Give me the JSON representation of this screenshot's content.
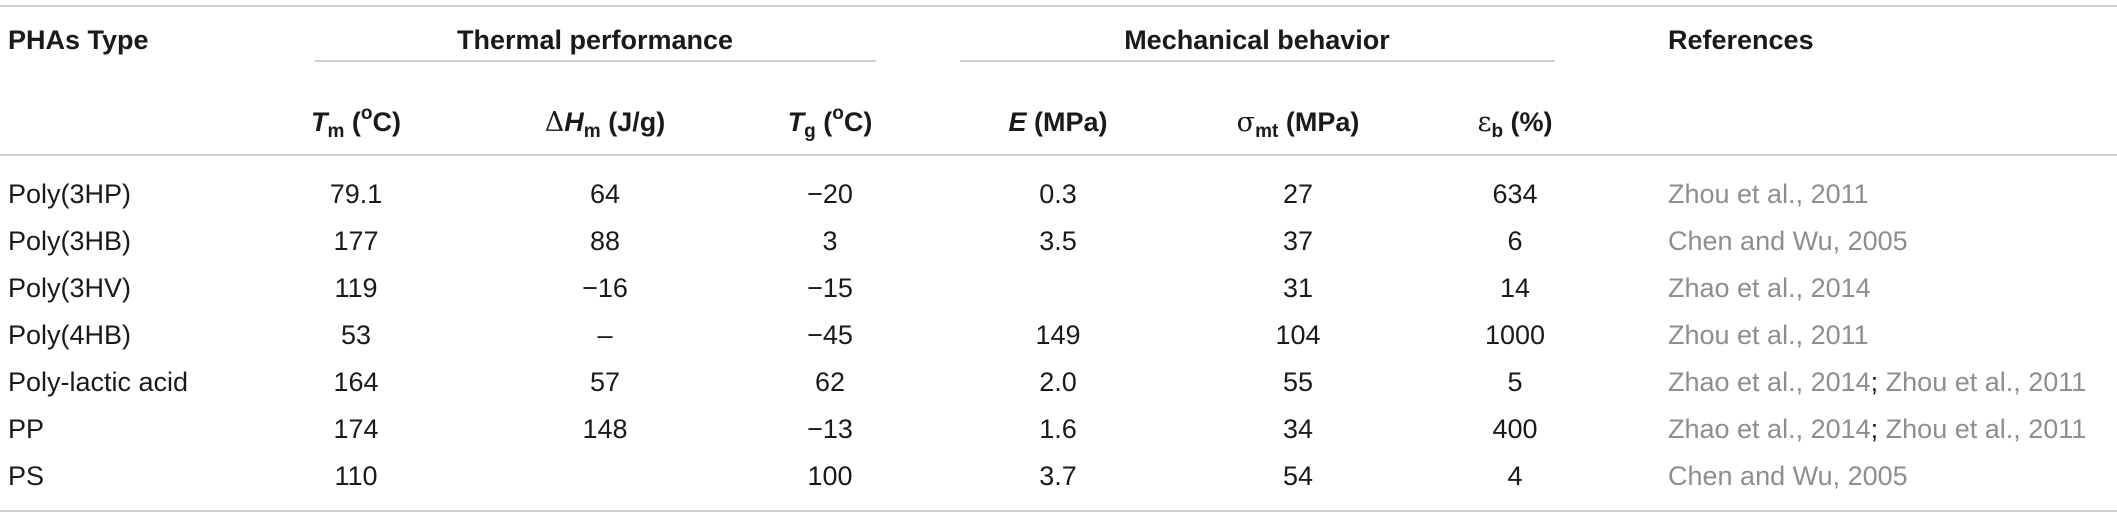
{
  "header": {
    "group1": "PHAs Type",
    "group2": "Thermal performance",
    "group3": "Mechanical behavior",
    "group4": "References",
    "cols": {
      "tm": {
        "sym": "T",
        "sub": "m",
        "unit_pre": " (",
        "sup": "o",
        "unit_post": "C)"
      },
      "dhm": {
        "pre": "Δ",
        "sym": "H",
        "sub": "m",
        "unit": " (J/g)"
      },
      "tg": {
        "sym": "T",
        "sub": "g",
        "unit_pre": " (",
        "sup": "o",
        "unit_post": "C)"
      },
      "e": {
        "sym": "E",
        "unit": " (MPa)"
      },
      "smt": {
        "sym": "σ",
        "sub": "mt",
        "unit": " (MPa)"
      },
      "eb": {
        "sym": "ε",
        "sub": "b",
        "unit": " (%)"
      }
    }
  },
  "rows": [
    {
      "type": "Poly(3HP)",
      "tm": "79.1",
      "dhm": "64",
      "tg": "−20",
      "e": "0.3",
      "smt": "27",
      "eb": "634",
      "ref1": "Zhou et al., 2011",
      "ref2": ""
    },
    {
      "type": "Poly(3HB)",
      "tm": "177",
      "dhm": "88",
      "tg": "3",
      "e": "3.5",
      "smt": "37",
      "eb": "6",
      "ref1": "Chen and Wu, 2005",
      "ref2": ""
    },
    {
      "type": "Poly(3HV)",
      "tm": "119",
      "dhm": "−16",
      "tg": "−15",
      "e": "",
      "smt": "31",
      "eb": "14",
      "ref1": "Zhao et al., 2014",
      "ref2": ""
    },
    {
      "type": "Poly(4HB)",
      "tm": "53",
      "dhm": "–",
      "tg": "−45",
      "e": "149",
      "smt": "104",
      "eb": "1000",
      "ref1": "Zhou et al., 2011",
      "ref2": ""
    },
    {
      "type": "Poly-lactic acid",
      "tm": "164",
      "dhm": "57",
      "tg": "62",
      "e": "2.0",
      "smt": "55",
      "eb": "5",
      "ref1": "Zhao et al., 2014",
      "ref2": "Zhou et al., 2011"
    },
    {
      "type": "PP",
      "tm": "174",
      "dhm": "148",
      "tg": "−13",
      "e": "1.6",
      "smt": "34",
      "eb": "400",
      "ref1": "Zhao et al., 2014",
      "ref2": "Zhou et al., 2011"
    },
    {
      "type": "PS",
      "tm": "110",
      "dhm": "",
      "tg": "100",
      "e": "3.7",
      "smt": "54",
      "eb": "4",
      "ref1": "Chen and Wu, 2005",
      "ref2": ""
    }
  ]
}
